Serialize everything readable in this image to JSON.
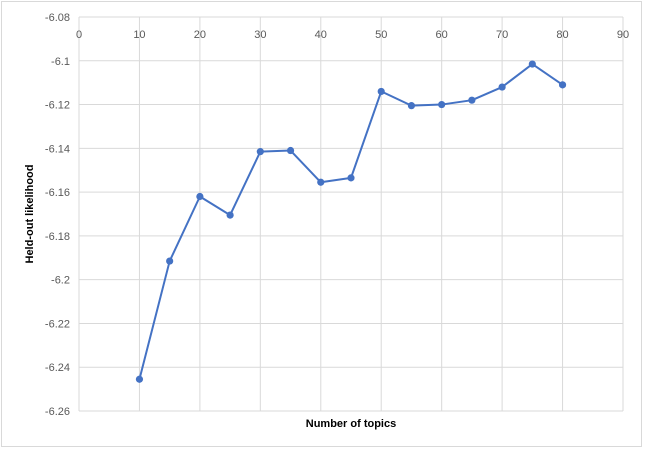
{
  "chart_data": {
    "type": "line",
    "title": "",
    "xlabel": "Number of topics",
    "ylabel": "Held-out likelihood",
    "xlim": [
      0,
      90
    ],
    "ylim": [
      -6.26,
      -6.08
    ],
    "x_ticks": [
      "0",
      "10",
      "20",
      "30",
      "40",
      "50",
      "60",
      "70",
      "80",
      "90"
    ],
    "y_ticks": [
      "-6.08",
      "-6.1",
      "-6.12",
      "-6.14",
      "-6.16",
      "-6.18",
      "-6.2",
      "-6.22",
      "-6.24",
      "-6.26"
    ],
    "x_tick_values": [
      0,
      10,
      20,
      30,
      40,
      50,
      60,
      70,
      80,
      90
    ],
    "y_tick_values": [
      -6.08,
      -6.1,
      -6.12,
      -6.14,
      -6.16,
      -6.18,
      -6.2,
      -6.22,
      -6.24,
      -6.26
    ],
    "grid": true,
    "legend": "none",
    "series": [
      {
        "color": "#4472c4",
        "x": [
          10,
          15,
          20,
          25,
          30,
          35,
          40,
          45,
          50,
          55,
          60,
          65,
          70,
          75,
          80
        ],
        "y": [
          -6.2455,
          -6.1915,
          -6.162,
          -6.1705,
          -6.1415,
          -6.141,
          -6.1555,
          -6.1535,
          -6.114,
          -6.1205,
          -6.12,
          -6.118,
          -6.112,
          -6.1015,
          -6.111
        ]
      }
    ]
  }
}
